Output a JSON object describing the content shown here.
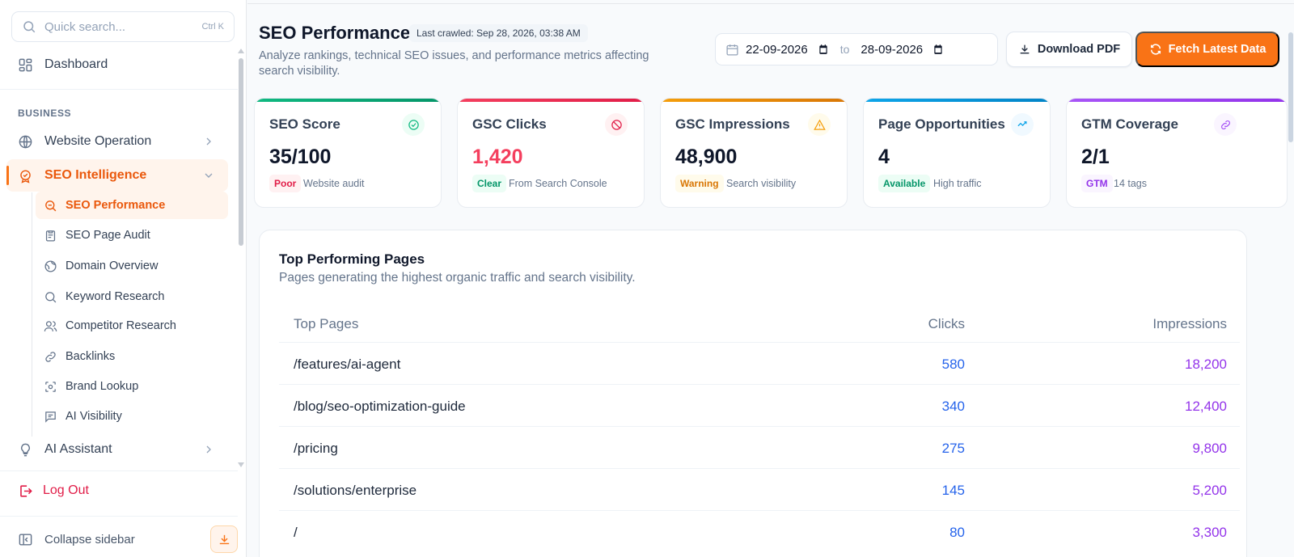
{
  "sidebar": {
    "search": {
      "placeholder": "Quick search...",
      "shortcut": "Ctrl K"
    },
    "dashboard": "Dashboard",
    "section_label": "BUSINESS",
    "items": [
      {
        "label": "Website Operation",
        "icon": "globe-icon"
      },
      {
        "label": "SEO Intelligence",
        "icon": "seo-badge-icon",
        "active": true
      },
      {
        "label": "AI Assistant",
        "icon": "lightbulb-icon"
      }
    ],
    "sub_items": [
      {
        "label": "SEO Performance",
        "icon": "search-zoom-icon",
        "active": true
      },
      {
        "label": "SEO Page Audit",
        "icon": "clipboard-icon"
      },
      {
        "label": "Domain Overview",
        "icon": "globe-icon"
      },
      {
        "label": "Keyword Research",
        "icon": "search-icon"
      },
      {
        "label": "Competitor Research",
        "icon": "users-icon"
      },
      {
        "label": "Backlinks",
        "icon": "link-icon"
      },
      {
        "label": "Brand Lookup",
        "icon": "scan-icon"
      },
      {
        "label": "AI Visibility",
        "icon": "message-icon"
      }
    ],
    "logout": "Log Out",
    "collapse": "Collapse sidebar"
  },
  "header": {
    "title": "SEO Performance",
    "last_crawled": "Last crawled: Sep 28, 2026, 03:38 AM",
    "subtitle": "Analyze rankings, technical SEO issues, and performance metrics affecting search visibility.",
    "date_from": "22-09-2026",
    "date_to": "28-09-2026",
    "date_sep": "to",
    "download_label": "Download PDF",
    "fetch_label": "Fetch Latest Data"
  },
  "cards": [
    {
      "title": "SEO Score",
      "value": "35/100",
      "badge": "Poor",
      "note": "Website audit",
      "accent": "#10b981",
      "icon": "check-circle-icon"
    },
    {
      "title": "GSC Clicks",
      "value": "1,420",
      "badge": "Clear",
      "note": "From Search Console",
      "accent": "#f43f5e",
      "icon": "ban-icon"
    },
    {
      "title": "GSC Impressions",
      "value": "48,900",
      "badge": "Warning",
      "note": "Search visibility",
      "accent": "#f59e0b",
      "icon": "warning-icon"
    },
    {
      "title": "Page Opportunities",
      "value": "4",
      "badge": "Available",
      "note": "High traffic",
      "accent": "#0ea5e9",
      "icon": "trend-icon"
    },
    {
      "title": "GTM Coverage",
      "value": "2/1",
      "badge": "GTM",
      "note": "14 tags",
      "accent": "#a855f7",
      "icon": "link-icon"
    }
  ],
  "table": {
    "title": "Top Performing Pages",
    "subtitle": "Pages generating the highest organic traffic and search visibility.",
    "columns": [
      "Top Pages",
      "Clicks",
      "Impressions"
    ],
    "rows": [
      {
        "page": "/features/ai-agent",
        "clicks": "580",
        "impressions": "18,200"
      },
      {
        "page": "/blog/seo-optimization-guide",
        "clicks": "340",
        "impressions": "12,400"
      },
      {
        "page": "/pricing",
        "clicks": "275",
        "impressions": "9,800"
      },
      {
        "page": "/solutions/enterprise",
        "clicks": "145",
        "impressions": "5,200"
      },
      {
        "page": "/",
        "clicks": "80",
        "impressions": "3,300"
      }
    ]
  },
  "colors": {
    "accent": "#f97316",
    "clicks": "#2563eb",
    "impressions": "#9333ea"
  }
}
